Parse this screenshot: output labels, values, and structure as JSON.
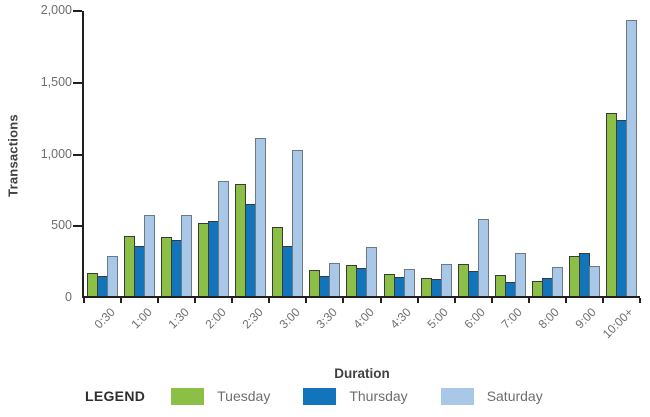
{
  "chart_data": {
    "type": "bar",
    "title": "",
    "xlabel": "Duration",
    "ylabel": "Transactions",
    "ylim": [
      0,
      2000
    ],
    "yticks": [
      0,
      500,
      1000,
      1500,
      2000
    ],
    "ytick_labels": [
      "0",
      "500",
      "1,000",
      "1,500",
      "2,000"
    ],
    "grid": false,
    "legend_title": "LEGEND",
    "legend_position": "bottom",
    "categories": [
      "0:30",
      "1:00",
      "1:30",
      "2:00",
      "2:30",
      "3:00",
      "3:30",
      "4:00",
      "4:30",
      "5:00",
      "6:00",
      "7:00",
      "8:00",
      "9:00",
      "10:00+"
    ],
    "series": [
      {
        "name": "Tuesday",
        "color": "#8cbf45",
        "border_color": "#3a3a3a",
        "values": [
          175,
          435,
          425,
          525,
          795,
          495,
          195,
          230,
          165,
          140,
          235,
          160,
          120,
          295,
          1290
        ]
      },
      {
        "name": "Thursday",
        "color": "#1274ba",
        "border_color": "#3a3a3a",
        "values": [
          155,
          360,
          405,
          535,
          655,
          365,
          150,
          210,
          145,
          130,
          190,
          110,
          140,
          315,
          1240
        ]
      },
      {
        "name": "Saturday",
        "color": "#a9c7e6",
        "border_color": "#6b7985",
        "values": [
          290,
          580,
          575,
          815,
          1115,
          1030,
          245,
          355,
          200,
          240,
          550,
          315,
          215,
          225,
          1935
        ]
      }
    ]
  }
}
